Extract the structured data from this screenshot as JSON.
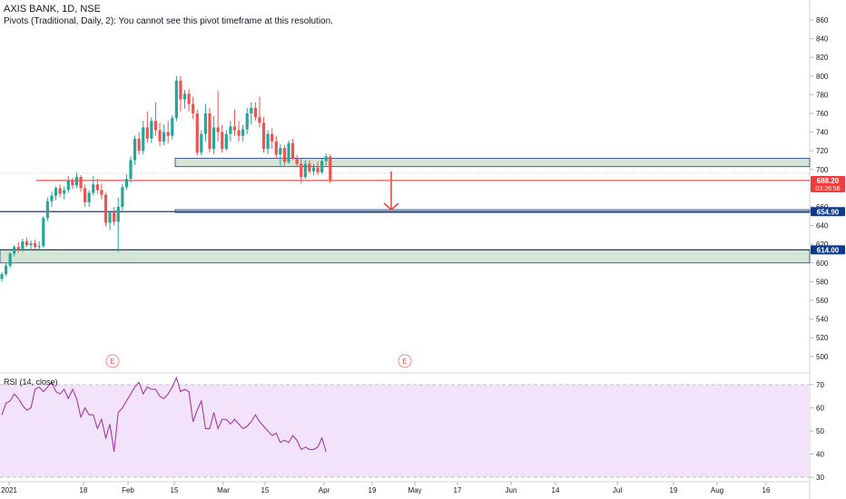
{
  "header": {
    "symbol_line": "AXIS BANK, 1D, NSE",
    "pivot_line": "Pivots (Traditional, Daily, 2): You cannot see this pivot timeframe at this resolution."
  },
  "rsi_panel": {
    "title": "RSI (14, close)"
  },
  "colors": {
    "up": "#26a69a",
    "down": "#ef5350",
    "zone_fill": "#d5e5d5",
    "zone_stroke": "#1e3a8a",
    "red_line": "#ef3d3d",
    "blue_line": "#0d3b8c",
    "rsi_line": "#a23aa3",
    "rsi_band": "#f3e3fa"
  },
  "chart_data": [
    {
      "type": "candlestick",
      "title": "AXIS BANK, 1D, NSE",
      "ylim": [
        480,
        870
      ],
      "y_ticks": [
        500,
        520,
        540,
        560,
        580,
        600,
        620,
        640,
        660,
        680,
        700,
        720,
        740,
        760,
        780,
        800,
        820,
        840,
        860
      ],
      "x_tick_labels": [
        "2021",
        "18",
        "Feb",
        "15",
        "Mar",
        "15",
        "Apr",
        "19",
        "May",
        "17",
        "Jun",
        "14",
        "Jul",
        "19",
        "Aug",
        "16"
      ],
      "price_labels": [
        {
          "value": "688.20",
          "sub": "03:26:56",
          "price": 688.2,
          "color": "#ef3d3d"
        },
        {
          "value": "654.90",
          "price": 654.9,
          "color": "#0d3b8c"
        },
        {
          "value": "614.00",
          "price": 614.0,
          "color": "#0d3b8c"
        }
      ],
      "horizontal_lines": [
        {
          "price": 688.2,
          "color": "#ef3d3d"
        },
        {
          "price": 654.9,
          "color": "#0d3b8c"
        },
        {
          "price": 614.0,
          "color": "#0d3b8c"
        }
      ],
      "zones": [
        {
          "from": 703,
          "to": 712
        },
        {
          "from": 654,
          "to": 657
        },
        {
          "from": 600,
          "to": 614
        }
      ],
      "earnings_markers": [
        "E",
        "E"
      ],
      "arrow": {
        "from_price": 698,
        "to_price": 657
      },
      "candles": [
        {
          "o": 583,
          "h": 590,
          "l": 580,
          "c": 588
        },
        {
          "o": 588,
          "h": 600,
          "l": 586,
          "c": 597
        },
        {
          "o": 597,
          "h": 612,
          "l": 595,
          "c": 610
        },
        {
          "o": 610,
          "h": 619,
          "l": 607,
          "c": 617
        },
        {
          "o": 617,
          "h": 622,
          "l": 611,
          "c": 614
        },
        {
          "o": 614,
          "h": 626,
          "l": 612,
          "c": 623
        },
        {
          "o": 623,
          "h": 627,
          "l": 617,
          "c": 619
        },
        {
          "o": 619,
          "h": 624,
          "l": 614,
          "c": 621
        },
        {
          "o": 621,
          "h": 625,
          "l": 615,
          "c": 617
        },
        {
          "o": 617,
          "h": 623,
          "l": 613,
          "c": 618
        },
        {
          "o": 618,
          "h": 650,
          "l": 616,
          "c": 648
        },
        {
          "o": 648,
          "h": 670,
          "l": 645,
          "c": 666
        },
        {
          "o": 666,
          "h": 676,
          "l": 660,
          "c": 672
        },
        {
          "o": 672,
          "h": 682,
          "l": 667,
          "c": 680
        },
        {
          "o": 680,
          "h": 684,
          "l": 670,
          "c": 674
        },
        {
          "o": 674,
          "h": 682,
          "l": 668,
          "c": 678
        },
        {
          "o": 678,
          "h": 693,
          "l": 675,
          "c": 688
        },
        {
          "o": 688,
          "h": 691,
          "l": 679,
          "c": 683
        },
        {
          "o": 683,
          "h": 697,
          "l": 680,
          "c": 692
        },
        {
          "o": 692,
          "h": 694,
          "l": 676,
          "c": 680
        },
        {
          "o": 680,
          "h": 684,
          "l": 660,
          "c": 665
        },
        {
          "o": 665,
          "h": 678,
          "l": 660,
          "c": 675
        },
        {
          "o": 675,
          "h": 693,
          "l": 672,
          "c": 684
        },
        {
          "o": 684,
          "h": 690,
          "l": 674,
          "c": 678
        },
        {
          "o": 678,
          "h": 685,
          "l": 668,
          "c": 673
        },
        {
          "o": 673,
          "h": 675,
          "l": 639,
          "c": 643
        },
        {
          "o": 643,
          "h": 656,
          "l": 635,
          "c": 654
        },
        {
          "o": 654,
          "h": 660,
          "l": 640,
          "c": 644
        },
        {
          "o": 644,
          "h": 670,
          "l": 612,
          "c": 660
        },
        {
          "o": 660,
          "h": 684,
          "l": 656,
          "c": 681
        },
        {
          "o": 681,
          "h": 695,
          "l": 678,
          "c": 690
        },
        {
          "o": 690,
          "h": 714,
          "l": 686,
          "c": 710
        },
        {
          "o": 710,
          "h": 736,
          "l": 705,
          "c": 733
        },
        {
          "o": 733,
          "h": 740,
          "l": 716,
          "c": 720
        },
        {
          "o": 720,
          "h": 752,
          "l": 716,
          "c": 745
        },
        {
          "o": 745,
          "h": 762,
          "l": 729,
          "c": 733
        },
        {
          "o": 733,
          "h": 756,
          "l": 728,
          "c": 752
        },
        {
          "o": 752,
          "h": 772,
          "l": 736,
          "c": 742
        },
        {
          "o": 742,
          "h": 750,
          "l": 725,
          "c": 730
        },
        {
          "o": 730,
          "h": 748,
          "l": 726,
          "c": 740
        },
        {
          "o": 740,
          "h": 752,
          "l": 728,
          "c": 736
        },
        {
          "o": 736,
          "h": 758,
          "l": 732,
          "c": 755
        },
        {
          "o": 755,
          "h": 800,
          "l": 752,
          "c": 795
        },
        {
          "o": 795,
          "h": 800,
          "l": 762,
          "c": 775
        },
        {
          "o": 775,
          "h": 785,
          "l": 765,
          "c": 781
        },
        {
          "o": 781,
          "h": 786,
          "l": 762,
          "c": 770
        },
        {
          "o": 770,
          "h": 778,
          "l": 754,
          "c": 760
        },
        {
          "o": 760,
          "h": 764,
          "l": 715,
          "c": 718
        },
        {
          "o": 718,
          "h": 742,
          "l": 715,
          "c": 738
        },
        {
          "o": 738,
          "h": 770,
          "l": 730,
          "c": 760
        },
        {
          "o": 760,
          "h": 766,
          "l": 718,
          "c": 722
        },
        {
          "o": 722,
          "h": 757,
          "l": 716,
          "c": 745
        },
        {
          "o": 745,
          "h": 784,
          "l": 730,
          "c": 740
        },
        {
          "o": 740,
          "h": 748,
          "l": 718,
          "c": 722
        },
        {
          "o": 722,
          "h": 742,
          "l": 720,
          "c": 738
        },
        {
          "o": 738,
          "h": 752,
          "l": 730,
          "c": 746
        },
        {
          "o": 746,
          "h": 764,
          "l": 736,
          "c": 742
        },
        {
          "o": 742,
          "h": 752,
          "l": 730,
          "c": 736
        },
        {
          "o": 736,
          "h": 748,
          "l": 730,
          "c": 743
        },
        {
          "o": 743,
          "h": 766,
          "l": 738,
          "c": 760
        },
        {
          "o": 760,
          "h": 772,
          "l": 748,
          "c": 766
        },
        {
          "o": 766,
          "h": 772,
          "l": 752,
          "c": 756
        },
        {
          "o": 756,
          "h": 778,
          "l": 745,
          "c": 750
        },
        {
          "o": 750,
          "h": 756,
          "l": 718,
          "c": 722
        },
        {
          "o": 722,
          "h": 742,
          "l": 716,
          "c": 738
        },
        {
          "o": 738,
          "h": 744,
          "l": 722,
          "c": 730
        },
        {
          "o": 730,
          "h": 736,
          "l": 712,
          "c": 716
        },
        {
          "o": 716,
          "h": 727,
          "l": 703,
          "c": 723
        },
        {
          "o": 723,
          "h": 726,
          "l": 704,
          "c": 708
        },
        {
          "o": 708,
          "h": 731,
          "l": 706,
          "c": 728
        },
        {
          "o": 728,
          "h": 733,
          "l": 710,
          "c": 712
        },
        {
          "o": 712,
          "h": 716,
          "l": 703,
          "c": 706
        },
        {
          "o": 706,
          "h": 712,
          "l": 685,
          "c": 692
        },
        {
          "o": 692,
          "h": 710,
          "l": 690,
          "c": 706
        },
        {
          "o": 706,
          "h": 710,
          "l": 696,
          "c": 698
        },
        {
          "o": 698,
          "h": 706,
          "l": 694,
          "c": 702
        },
        {
          "o": 702,
          "h": 708,
          "l": 694,
          "c": 697
        },
        {
          "o": 697,
          "h": 712,
          "l": 695,
          "c": 709
        },
        {
          "o": 709,
          "h": 717,
          "l": 704,
          "c": 714
        },
        {
          "o": 714,
          "h": 716,
          "l": 685,
          "c": 688.2
        }
      ]
    },
    {
      "type": "line",
      "title": "RSI (14, close)",
      "ylim": [
        28,
        75
      ],
      "y_ticks": [
        30,
        40,
        50,
        60,
        70
      ],
      "band": [
        30,
        70
      ],
      "values": [
        57,
        62,
        63,
        66,
        64,
        61,
        59,
        60,
        68,
        69,
        67,
        69,
        71,
        67,
        66,
        68,
        64,
        68,
        64,
        56,
        60,
        57,
        57,
        51,
        55,
        47,
        53,
        41,
        58,
        60,
        63,
        66,
        69,
        71,
        66,
        69,
        68,
        68,
        65,
        64,
        66,
        69,
        73,
        67,
        68,
        67,
        54,
        59,
        63,
        51,
        51,
        58,
        51,
        55,
        55,
        53,
        55,
        53,
        51,
        52,
        54,
        57,
        54,
        52,
        50,
        48,
        49,
        45,
        46,
        45,
        48,
        46,
        42,
        43,
        42,
        42,
        43,
        47,
        41
      ]
    }
  ]
}
